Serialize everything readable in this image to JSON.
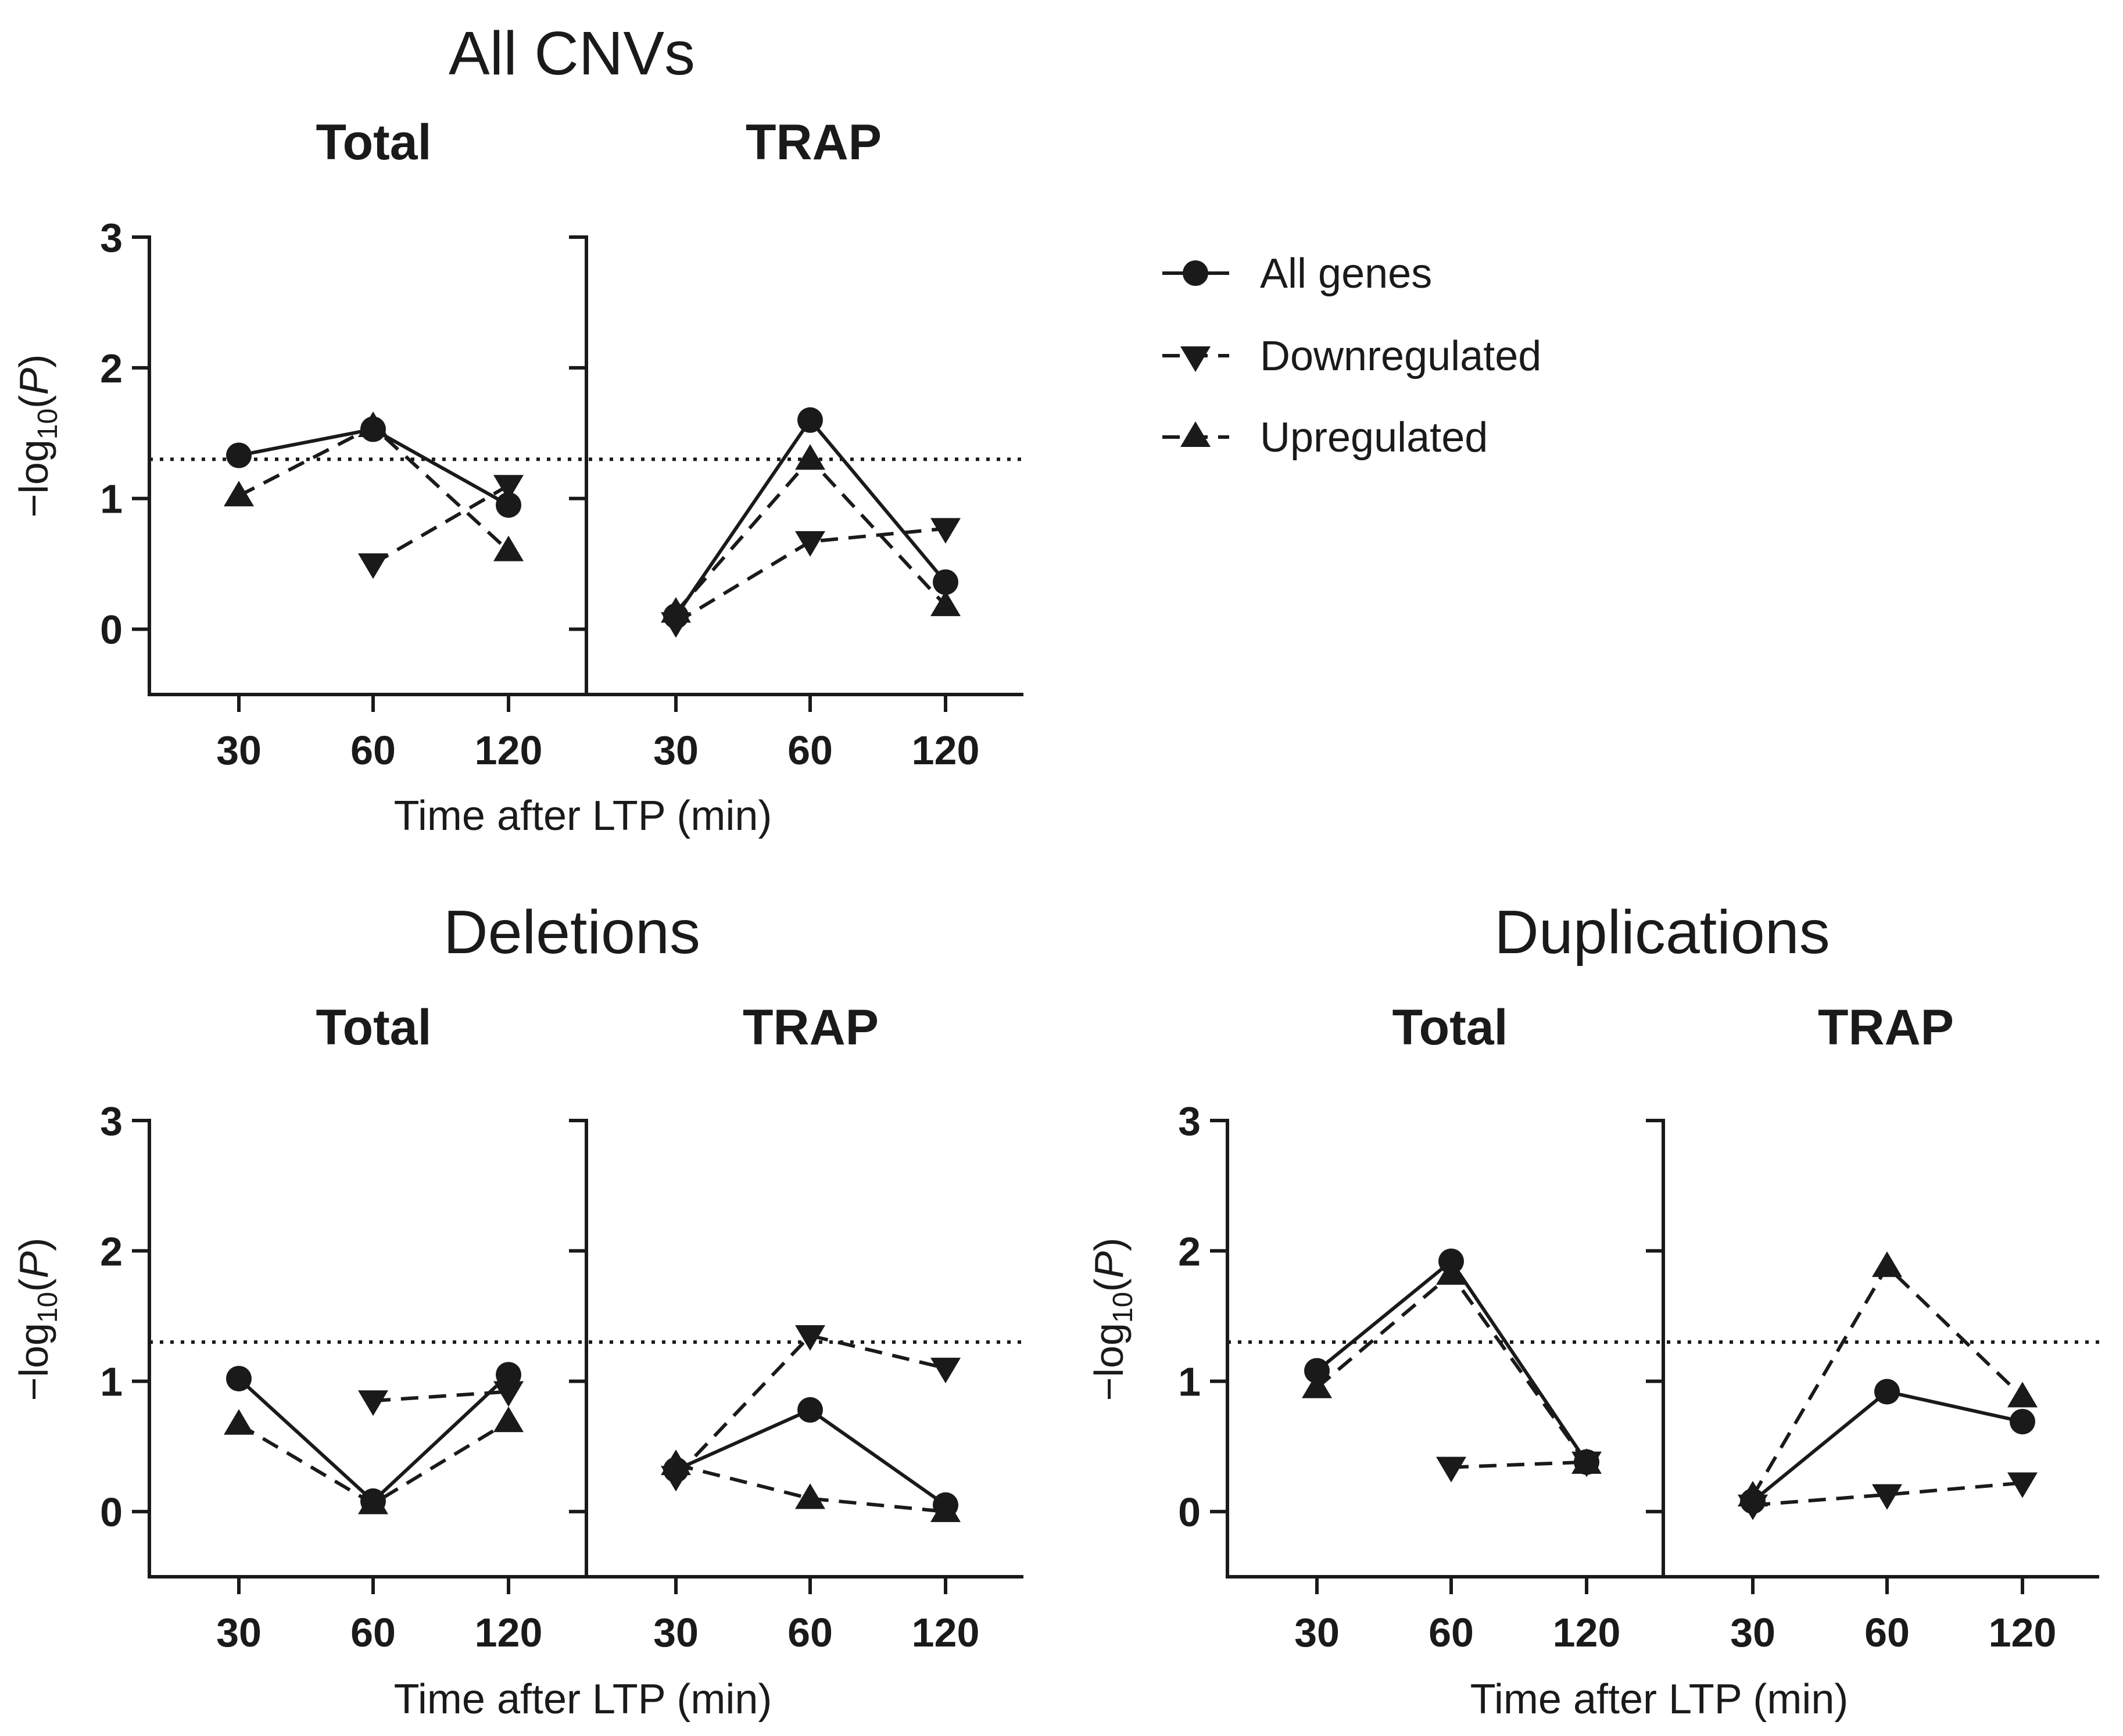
{
  "chart_data": {
    "type": "line",
    "groups": [
      {
        "title": "All CNVs",
        "panels": [
          {
            "title": "Total",
            "series": [
              {
                "name": "All genes",
                "values": [
                  1.33,
                  1.53,
                  0.95
                ]
              },
              {
                "name": "Downregulated",
                "values": [
                  null,
                  0.5,
                  1.1
                ]
              },
              {
                "name": "Upregulated",
                "values": [
                  1.02,
                  1.55,
                  0.6
                ]
              }
            ]
          },
          {
            "title": "TRAP",
            "series": [
              {
                "name": "All genes",
                "values": [
                  0.1,
                  1.6,
                  0.36
                ]
              },
              {
                "name": "Downregulated",
                "values": [
                  0.05,
                  0.67,
                  0.77
                ]
              },
              {
                "name": "Upregulated",
                "values": [
                  0.13,
                  1.3,
                  0.18
                ]
              }
            ]
          }
        ]
      },
      {
        "title": "Deletions",
        "panels": [
          {
            "title": "Total",
            "series": [
              {
                "name": "All genes",
                "values": [
                  1.02,
                  0.08,
                  1.05
                ]
              },
              {
                "name": "Downregulated",
                "values": [
                  null,
                  0.85,
                  0.92
                ]
              },
              {
                "name": "Upregulated",
                "values": [
                  0.67,
                  0.06,
                  0.69
                ]
              }
            ]
          },
          {
            "title": "TRAP",
            "series": [
              {
                "name": "All genes",
                "values": [
                  0.32,
                  0.78,
                  0.05
                ]
              },
              {
                "name": "Downregulated",
                "values": [
                  0.27,
                  1.35,
                  1.1
                ]
              },
              {
                "name": "Upregulated",
                "values": [
                  0.36,
                  0.1,
                  0.0
                ]
              }
            ]
          }
        ]
      },
      {
        "title": "Duplications",
        "panels": [
          {
            "title": "Total",
            "series": [
              {
                "name": "All genes",
                "values": [
                  1.08,
                  1.92,
                  0.38
                ]
              },
              {
                "name": "Downregulated",
                "values": [
                  null,
                  0.34,
                  0.38
                ]
              },
              {
                "name": "Upregulated",
                "values": [
                  0.95,
                  1.82,
                  0.37
                ]
              }
            ]
          },
          {
            "title": "TRAP",
            "series": [
              {
                "name": "All genes",
                "values": [
                  0.08,
                  0.92,
                  0.69
                ]
              },
              {
                "name": "Downregulated",
                "values": [
                  0.05,
                  0.13,
                  0.22
                ]
              },
              {
                "name": "Upregulated",
                "values": [
                  0.12,
                  1.88,
                  0.88
                ]
              }
            ]
          }
        ]
      }
    ],
    "categories": [
      "30",
      "60",
      "120"
    ],
    "xlabel": "Time after LTP (min)",
    "ylabel": "−log10(P)",
    "ylabel_parts": {
      "prefix": "−log",
      "sub": "10",
      "open": "(",
      "italic": "P",
      "close": ")"
    },
    "yticks": [
      "0",
      "1",
      "2",
      "3"
    ],
    "ylim": [
      -0.5,
      3
    ],
    "threshold": 1.3,
    "legend": [
      {
        "name": "All genes",
        "marker": "circle",
        "line": "solid"
      },
      {
        "name": "Downregulated",
        "marker": "triangle-down",
        "line": "dashed"
      },
      {
        "name": "Upregulated",
        "marker": "triangle-up",
        "line": "dashed"
      }
    ],
    "legend_position": "top-right"
  },
  "colors": {
    "ink": "#1a1a1a",
    "background": "#ffffff"
  }
}
